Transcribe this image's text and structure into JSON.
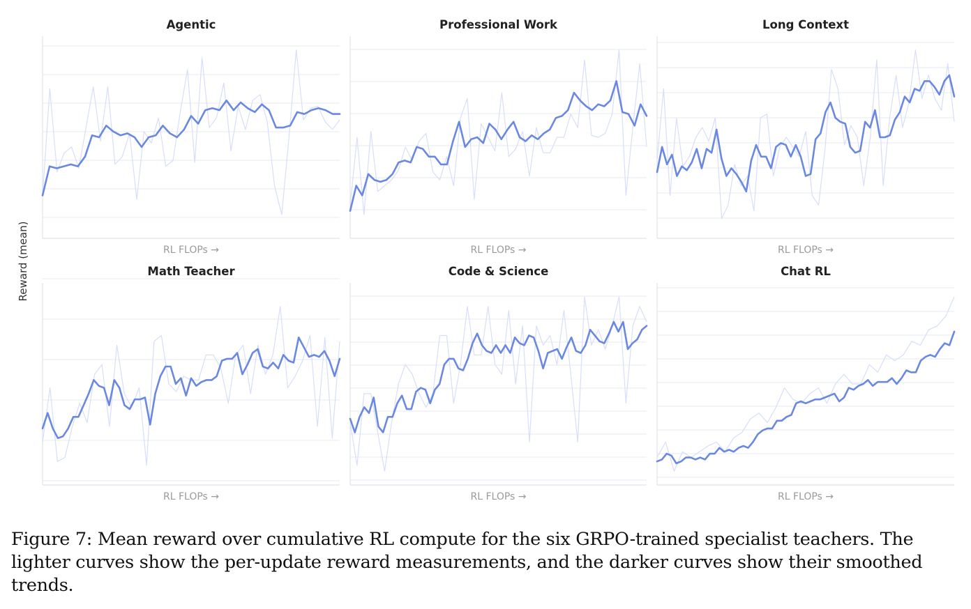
{
  "colors": {
    "raw": "#d7defa",
    "smoothed": "#6b88e0",
    "grid": "#e6e8f0"
  },
  "figure": {
    "ylabel": "Reward (mean)",
    "caption": "Figure 7: Mean reward over cumulative RL compute for the six GRPO-trained specialist teachers. The lighter curves show the per-update reward measurements, and the darker curves show their smoothed trends."
  },
  "chart_data": [
    {
      "type": "line",
      "title": "Agentic",
      "xlabel": "RL FLOPs →",
      "ylabel": "Reward (mean)",
      "grid": "horizontal",
      "ylim": [
        0,
        1
      ],
      "series": [
        {
          "values": [
            0.2,
            0.75,
            0.32,
            0.42,
            0.45,
            0.34,
            0.55,
            0.76,
            0.48,
            0.76,
            0.36,
            0.4,
            0.52,
            0.18,
            0.53,
            0.47,
            0.6,
            0.35,
            0.38,
            0.63,
            0.85,
            0.37,
            0.91,
            0.55,
            0.6,
            0.78,
            0.43,
            0.66,
            0.54,
            0.69,
            0.72,
            0.58,
            0.25,
            0.1,
            0.5,
            0.95,
            0.59,
            0.65,
            0.66,
            0.58,
            0.54,
            0.59
          ]
        },
        {
          "values": [
            0.2,
            0.35,
            0.34,
            0.35,
            0.36,
            0.35,
            0.4,
            0.51,
            0.5,
            0.56,
            0.53,
            0.51,
            0.52,
            0.5,
            0.45,
            0.5,
            0.51,
            0.56,
            0.52,
            0.5,
            0.54,
            0.61,
            0.57,
            0.64,
            0.65,
            0.64,
            0.69,
            0.64,
            0.68,
            0.65,
            0.63,
            0.67,
            0.64,
            0.55,
            0.55,
            0.56,
            0.63,
            0.62,
            0.64,
            0.65,
            0.64,
            0.62,
            0.62
          ]
        }
      ]
    },
    {
      "type": "line",
      "title": "Professional Work",
      "xlabel": "RL FLOPs →",
      "ylabel": "Reward (mean)",
      "grid": "horizontal",
      "ylim": [
        0,
        1
      ],
      "series": [
        {
          "values": [
            0.15,
            0.5,
            0.1,
            0.53,
            0.22,
            0.25,
            0.28,
            0.33,
            0.45,
            0.38,
            0.48,
            0.52,
            0.32,
            0.28,
            0.4,
            0.25,
            0.6,
            0.7,
            0.18,
            0.57,
            0.5,
            0.43,
            0.73,
            0.4,
            0.44,
            0.53,
            0.3,
            0.55,
            0.42,
            0.42,
            0.5,
            0.5,
            0.62,
            0.55,
            0.9,
            0.51,
            0.5,
            0.52,
            0.62,
            0.95,
            0.2,
            0.55,
            0.88,
            0.45
          ]
        },
        {
          "values": [
            0.12,
            0.25,
            0.2,
            0.31,
            0.28,
            0.27,
            0.28,
            0.31,
            0.37,
            0.38,
            0.37,
            0.45,
            0.44,
            0.4,
            0.4,
            0.36,
            0.36,
            0.48,
            0.58,
            0.45,
            0.49,
            0.5,
            0.47,
            0.57,
            0.54,
            0.49,
            0.54,
            0.58,
            0.5,
            0.48,
            0.51,
            0.49,
            0.52,
            0.54,
            0.6,
            0.61,
            0.64,
            0.73,
            0.69,
            0.66,
            0.64,
            0.67,
            0.66,
            0.69,
            0.79,
            0.63,
            0.62,
            0.56,
            0.67,
            0.61
          ]
        }
      ]
    },
    {
      "type": "line",
      "title": "Long Context",
      "xlabel": "RL FLOPs →",
      "ylabel": "Reward (mean)",
      "grid": "horizontal",
      "ylim": [
        0,
        1
      ],
      "series": [
        {
          "values": [
            0.38,
            0.75,
            0.2,
            0.6,
            0.35,
            0.4,
            0.5,
            0.55,
            0.48,
            0.6,
            0.08,
            0.15,
            0.36,
            0.25,
            0.3,
            0.12,
            0.6,
            0.62,
            0.3,
            0.45,
            0.5,
            0.45,
            0.4,
            0.53,
            0.2,
            0.15,
            0.44,
            0.85,
            0.75,
            0.46,
            0.56,
            0.5,
            0.25,
            0.5,
            0.9,
            0.25,
            0.6,
            0.82,
            0.55,
            0.68,
            0.95,
            0.7,
            0.82,
            0.7,
            0.64,
            0.88,
            0.58
          ]
        },
        {
          "values": [
            0.32,
            0.45,
            0.36,
            0.41,
            0.3,
            0.35,
            0.33,
            0.37,
            0.44,
            0.34,
            0.44,
            0.42,
            0.54,
            0.39,
            0.3,
            0.34,
            0.31,
            0.27,
            0.22,
            0.38,
            0.46,
            0.4,
            0.4,
            0.34,
            0.45,
            0.47,
            0.46,
            0.4,
            0.46,
            0.4,
            0.3,
            0.31,
            0.49,
            0.52,
            0.63,
            0.68,
            0.6,
            0.58,
            0.57,
            0.45,
            0.42,
            0.43,
            0.58,
            0.55,
            0.64,
            0.5,
            0.5,
            0.51,
            0.59,
            0.63,
            0.71,
            0.68,
            0.75,
            0.74,
            0.79,
            0.79,
            0.76,
            0.72,
            0.79,
            0.82,
            0.71
          ]
        }
      ]
    },
    {
      "type": "line",
      "title": "Math Teacher",
      "xlabel": "RL FLOPs →",
      "ylabel": "Reward (mean)",
      "grid": "horizontal",
      "ylim": [
        0,
        1
      ],
      "series": [
        {
          "values": [
            0.2,
            0.48,
            0.1,
            0.12,
            0.28,
            0.4,
            0.3,
            0.55,
            0.6,
            0.28,
            0.7,
            0.45,
            0.38,
            0.48,
            0.08,
            0.72,
            0.75,
            0.5,
            0.46,
            0.54,
            0.52,
            0.52,
            0.65,
            0.65,
            0.58,
            0.4,
            0.65,
            0.7,
            0.45,
            0.7,
            0.55,
            0.65,
            0.9,
            0.48,
            0.54,
            0.62,
            0.75,
            0.28,
            0.74,
            0.22,
            0.72
          ]
        },
        {
          "values": [
            0.27,
            0.35,
            0.27,
            0.22,
            0.23,
            0.27,
            0.33,
            0.33,
            0.39,
            0.45,
            0.52,
            0.49,
            0.48,
            0.39,
            0.52,
            0.48,
            0.39,
            0.37,
            0.42,
            0.42,
            0.43,
            0.29,
            0.45,
            0.54,
            0.59,
            0.59,
            0.5,
            0.53,
            0.44,
            0.53,
            0.49,
            0.51,
            0.52,
            0.52,
            0.54,
            0.62,
            0.63,
            0.63,
            0.66,
            0.55,
            0.6,
            0.66,
            0.68,
            0.59,
            0.58,
            0.61,
            0.58,
            0.65,
            0.62,
            0.61,
            0.74,
            0.69,
            0.64,
            0.65,
            0.64,
            0.67,
            0.62,
            0.54,
            0.63
          ]
        }
      ]
    },
    {
      "type": "line",
      "title": "Code & Science",
      "xlabel": "RL FLOPs →",
      "ylabel": "Reward (mean)",
      "grid": "horizontal",
      "ylim": [
        0,
        1
      ],
      "series": [
        {
          "values": [
            0.3,
            0.08,
            0.45,
            0.45,
            0.25,
            0.05,
            0.3,
            0.5,
            0.6,
            0.55,
            0.45,
            0.38,
            0.45,
            0.75,
            0.75,
            0.4,
            0.6,
            0.9,
            0.65,
            0.65,
            0.9,
            0.6,
            0.55,
            0.88,
            0.5,
            0.8,
            0.2,
            0.8,
            0.7,
            0.75,
            0.6,
            0.88,
            0.55,
            0.2,
            0.95,
            0.7,
            0.78,
            0.68,
            0.8,
            0.95,
            0.4,
            0.8,
            0.9,
            0.82
          ]
        },
        {
          "values": [
            0.32,
            0.25,
            0.33,
            0.38,
            0.35,
            0.43,
            0.28,
            0.25,
            0.33,
            0.33,
            0.4,
            0.44,
            0.37,
            0.37,
            0.46,
            0.48,
            0.47,
            0.4,
            0.47,
            0.5,
            0.6,
            0.63,
            0.63,
            0.58,
            0.57,
            0.63,
            0.71,
            0.76,
            0.7,
            0.67,
            0.66,
            0.7,
            0.66,
            0.7,
            0.66,
            0.74,
            0.71,
            0.7,
            0.75,
            0.74,
            0.67,
            0.58,
            0.66,
            0.67,
            0.68,
            0.63,
            0.69,
            0.74,
            0.67,
            0.66,
            0.7,
            0.78,
            0.75,
            0.72,
            0.71,
            0.76,
            0.82,
            0.77,
            0.82,
            0.68,
            0.71,
            0.73,
            0.78,
            0.8
          ]
        }
      ]
    },
    {
      "type": "line",
      "title": "Chat RL",
      "xlabel": "RL FLOPs →",
      "ylabel": "Reward (mean)",
      "grid": "horizontal",
      "ylim": [
        0,
        1
      ],
      "series": [
        {
          "values": [
            0.12,
            0.2,
            0.05,
            0.15,
            0.12,
            0.15,
            0.18,
            0.2,
            0.15,
            0.22,
            0.25,
            0.32,
            0.35,
            0.3,
            0.38,
            0.48,
            0.42,
            0.4,
            0.45,
            0.48,
            0.4,
            0.5,
            0.55,
            0.5,
            0.5,
            0.6,
            0.56,
            0.65,
            0.62,
            0.65,
            0.72,
            0.7,
            0.78,
            0.8,
            0.85,
            0.95
          ]
        },
        {
          "values": [
            0.1,
            0.11,
            0.14,
            0.13,
            0.09,
            0.1,
            0.12,
            0.12,
            0.11,
            0.12,
            0.11,
            0.14,
            0.14,
            0.17,
            0.15,
            0.16,
            0.15,
            0.17,
            0.18,
            0.17,
            0.2,
            0.24,
            0.26,
            0.27,
            0.27,
            0.31,
            0.31,
            0.33,
            0.34,
            0.4,
            0.41,
            0.4,
            0.41,
            0.42,
            0.42,
            0.43,
            0.44,
            0.45,
            0.41,
            0.43,
            0.48,
            0.47,
            0.49,
            0.5,
            0.52,
            0.49,
            0.51,
            0.51,
            0.51,
            0.53,
            0.5,
            0.53,
            0.57,
            0.56,
            0.56,
            0.62,
            0.64,
            0.65,
            0.64,
            0.68,
            0.71,
            0.7,
            0.77
          ]
        }
      ]
    }
  ]
}
